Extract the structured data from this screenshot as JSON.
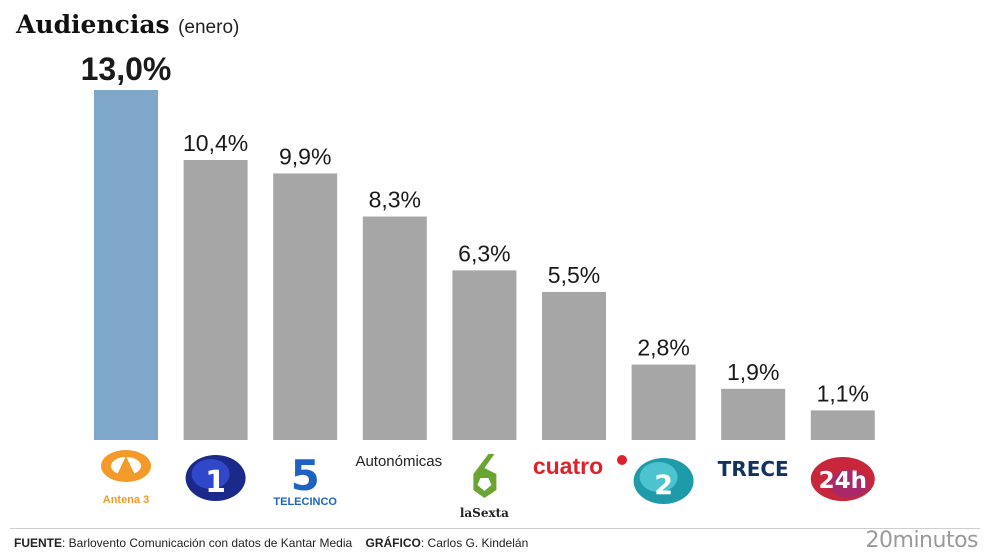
{
  "header": {
    "title": "Audiencias",
    "subtitle": "(enero)"
  },
  "chart_data": {
    "type": "bar",
    "categories": [
      "Antena 3",
      "1",
      "TELECINCO",
      "Autonómicas",
      "laSexta",
      "cuatro",
      "2",
      "TRECE",
      "24h"
    ],
    "values": [
      13.0,
      10.4,
      9.9,
      8.3,
      6.3,
      5.5,
      2.8,
      1.9,
      1.1
    ],
    "value_labels": [
      "13,0%",
      "10,4%",
      "9,9%",
      "8,3%",
      "6,3%",
      "5,5%",
      "2,8%",
      "1,9%",
      "1,1%"
    ],
    "highlight_index": 0,
    "colors": {
      "highlight": "#7fa7c9",
      "default": "#a6a6a6"
    },
    "ylim": [
      0,
      13.0
    ],
    "grid": false,
    "legend": "none",
    "logos": [
      "antena3-logo",
      "la1-logo",
      "telecinco-logo",
      "",
      "lasexta-logo",
      "cuatro-logo",
      "la2-logo",
      "trece-logo",
      "24h-logo"
    ]
  },
  "footer": {
    "source_label": "FUENTE",
    "source_text": ": Barlovento Comunicación con datos de Kantar Media",
    "graphic_label": "GRÁFICO",
    "graphic_text": ": Carlos G. Kindelán",
    "brand": "20minutos"
  }
}
